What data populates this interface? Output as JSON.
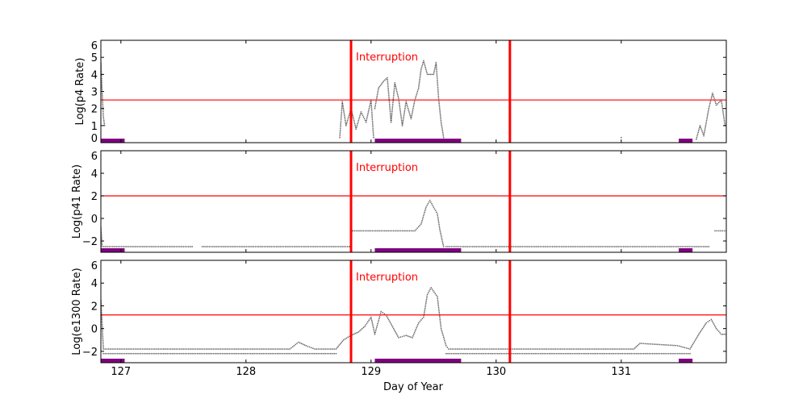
{
  "chart_data": [
    {
      "type": "scatter",
      "ylabel": "Log(p4 Rate)",
      "xlim": [
        126.84,
        131.84
      ],
      "ylim": [
        0,
        6
      ],
      "yticks": [
        0,
        1,
        2,
        3,
        4,
        5,
        6
      ],
      "threshold": 2.5,
      "annotation": "Interruption",
      "segments": [
        [
          [
            126.84,
            4.7
          ],
          [
            126.85,
            3.0
          ],
          [
            126.86,
            1.5
          ],
          [
            126.87,
            1.0
          ]
        ],
        [
          [
            128.75,
            0.3
          ],
          [
            128.77,
            2.4
          ],
          [
            128.8,
            1.0
          ],
          [
            128.84,
            2.0
          ],
          [
            128.88,
            0.8
          ],
          [
            128.92,
            1.8
          ],
          [
            128.96,
            1.2
          ],
          [
            129.0,
            2.5
          ],
          [
            129.02,
            0.3
          ]
        ],
        [
          [
            129.03,
            2.0
          ],
          [
            129.06,
            3.2
          ],
          [
            129.1,
            3.6
          ],
          [
            129.13,
            3.8
          ],
          [
            129.16,
            1.2
          ],
          [
            129.19,
            3.5
          ],
          [
            129.22,
            2.6
          ],
          [
            129.25,
            1.0
          ],
          [
            129.28,
            2.4
          ],
          [
            129.32,
            1.4
          ],
          [
            129.35,
            2.5
          ],
          [
            129.38,
            3.2
          ],
          [
            129.4,
            4.3
          ],
          [
            129.42,
            4.8
          ],
          [
            129.45,
            4.0
          ],
          [
            129.5,
            4.0
          ],
          [
            129.52,
            4.7
          ],
          [
            129.54,
            2.6
          ],
          [
            129.56,
            1.2
          ],
          [
            129.58,
            0.3
          ]
        ],
        [
          [
            131.0,
            0.3
          ]
        ],
        [
          [
            131.6,
            0.2
          ],
          [
            131.63,
            1.0
          ],
          [
            131.66,
            0.4
          ],
          [
            131.7,
            2.0
          ],
          [
            131.73,
            2.9
          ],
          [
            131.76,
            2.2
          ],
          [
            131.8,
            2.5
          ],
          [
            131.83,
            1.0
          ]
        ]
      ]
    },
    {
      "type": "scatter",
      "ylabel": "Log(p41 Rate)",
      "xlim": [
        126.84,
        131.84
      ],
      "ylim": [
        -3,
        6
      ],
      "yticks": [
        -2,
        0,
        2,
        4,
        6
      ],
      "threshold": 2,
      "annotation": "Interruption",
      "segments": [
        [
          [
            126.84,
            -0.8
          ],
          [
            126.85,
            -2.5
          ],
          [
            127.57,
            -2.5
          ]
        ],
        [
          [
            127.65,
            -2.5
          ],
          [
            128.84,
            -2.5
          ]
        ],
        [
          [
            128.84,
            -1.1
          ],
          [
            129.35,
            -1.1
          ],
          [
            129.4,
            -0.5
          ],
          [
            129.44,
            1.0
          ],
          [
            129.47,
            1.6
          ],
          [
            129.5,
            1.0
          ],
          [
            129.53,
            0.4
          ],
          [
            129.55,
            -1.0
          ],
          [
            129.58,
            -2.5
          ]
        ],
        [
          [
            129.6,
            -2.5
          ],
          [
            131.7,
            -2.5
          ]
        ],
        [
          [
            131.75,
            -1.1
          ],
          [
            131.84,
            -1.1
          ]
        ]
      ]
    },
    {
      "type": "scatter",
      "ylabel": "Log(e1300 Rate)",
      "xlabel": "Day of Year",
      "xlim": [
        126.84,
        131.84
      ],
      "ylim": [
        -3,
        6
      ],
      "yticks": [
        -2,
        0,
        2,
        4,
        6
      ],
      "xticks": [
        127,
        128,
        129,
        130,
        131
      ],
      "threshold": 1.2,
      "annotation": "Interruption",
      "segments": [
        [
          [
            126.84,
            2.5
          ],
          [
            126.86,
            -1.8
          ],
          [
            128.35,
            -1.8
          ],
          [
            128.42,
            -1.2
          ],
          [
            128.48,
            -1.5
          ],
          [
            128.55,
            -1.8
          ],
          [
            128.72,
            -1.8
          ],
          [
            128.78,
            -1.0
          ],
          [
            128.84,
            -0.6
          ],
          [
            128.9,
            -0.3
          ],
          [
            128.95,
            0.2
          ],
          [
            129.0,
            1.0
          ],
          [
            129.03,
            -0.5
          ],
          [
            129.08,
            1.5
          ],
          [
            129.12,
            1.2
          ],
          [
            129.18,
            0.0
          ],
          [
            129.22,
            -0.8
          ],
          [
            129.28,
            -0.6
          ],
          [
            129.33,
            -0.8
          ],
          [
            129.38,
            0.5
          ],
          [
            129.42,
            1.0
          ],
          [
            129.45,
            3.0
          ],
          [
            129.48,
            3.6
          ],
          [
            129.53,
            2.8
          ],
          [
            129.56,
            0.0
          ],
          [
            129.6,
            -1.5
          ],
          [
            129.62,
            -1.8
          ],
          [
            131.1,
            -1.8
          ],
          [
            131.15,
            -1.3
          ],
          [
            131.45,
            -1.5
          ],
          [
            131.55,
            -1.8
          ],
          [
            131.62,
            -0.5
          ],
          [
            131.68,
            0.5
          ],
          [
            131.72,
            0.8
          ],
          [
            131.76,
            0.0
          ],
          [
            131.8,
            -0.5
          ],
          [
            131.84,
            -0.5
          ]
        ],
        [
          [
            126.86,
            -2.2
          ],
          [
            128.72,
            -2.2
          ]
        ],
        [
          [
            129.6,
            -2.2
          ],
          [
            131.55,
            -2.2
          ]
        ]
      ]
    }
  ],
  "purple_intervals": [
    [
      126.84,
      127.03
    ],
    [
      129.03,
      129.72
    ],
    [
      131.46,
      131.57
    ]
  ],
  "interruptions": [
    128.84,
    130.11
  ],
  "colors": {
    "interruption": "#ff0000",
    "threshold": "#ff0000",
    "bars": "#800080",
    "points": "#000000"
  }
}
